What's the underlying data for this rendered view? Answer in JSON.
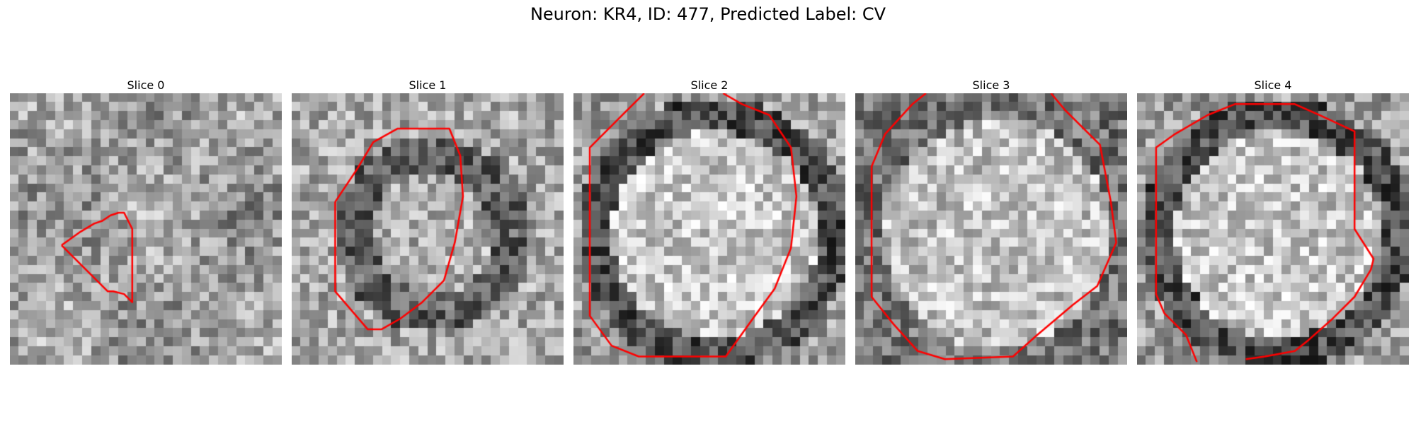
{
  "figure": {
    "title": "Neuron: KR4, ID: 477, Predicted Label: CV"
  },
  "contour_color": "#ff0000",
  "slices": [
    {
      "label": "Slice 0",
      "seed": 11,
      "style": "blob",
      "contour": [
        [
          0.19,
          0.56
        ],
        [
          0.26,
          0.51
        ],
        [
          0.31,
          0.48
        ],
        [
          0.34,
          0.47
        ],
        [
          0.37,
          0.45
        ],
        [
          0.4,
          0.44
        ],
        [
          0.42,
          0.44
        ],
        [
          0.45,
          0.5
        ],
        [
          0.45,
          0.77
        ],
        [
          0.44,
          0.76
        ],
        [
          0.42,
          0.74
        ],
        [
          0.38,
          0.73
        ],
        [
          0.36,
          0.73
        ],
        [
          0.3,
          0.67
        ],
        [
          0.19,
          0.56
        ]
      ]
    },
    {
      "label": "Slice 1",
      "seed": 23,
      "style": "ring",
      "contour": [
        [
          0.16,
          0.4
        ],
        [
          0.24,
          0.28
        ],
        [
          0.3,
          0.18
        ],
        [
          0.39,
          0.13
        ],
        [
          0.44,
          0.13
        ],
        [
          0.58,
          0.13
        ],
        [
          0.62,
          0.23
        ],
        [
          0.63,
          0.38
        ],
        [
          0.6,
          0.55
        ],
        [
          0.56,
          0.69
        ],
        [
          0.48,
          0.77
        ],
        [
          0.4,
          0.83
        ],
        [
          0.33,
          0.87
        ],
        [
          0.28,
          0.87
        ],
        [
          0.16,
          0.73
        ],
        [
          0.16,
          0.4
        ]
      ]
    },
    {
      "label": "Slice 2",
      "seed": 37,
      "style": "bright-ring",
      "contour": [
        [
          0.26,
          0.0
        ],
        [
          0.18,
          0.08
        ],
        [
          0.06,
          0.2
        ],
        [
          0.06,
          0.82
        ],
        [
          0.14,
          0.93
        ],
        [
          0.24,
          0.97
        ],
        [
          0.56,
          0.97
        ],
        [
          0.66,
          0.83
        ],
        [
          0.74,
          0.72
        ],
        [
          0.8,
          0.57
        ],
        [
          0.82,
          0.38
        ],
        [
          0.8,
          0.2
        ],
        [
          0.72,
          0.08
        ],
        [
          0.62,
          0.04
        ],
        [
          0.55,
          0.0
        ]
      ]
    },
    {
      "label": "Slice 3",
      "seed": 51,
      "style": "bright",
      "contour": [
        [
          0.26,
          0.0
        ],
        [
          0.21,
          0.04
        ],
        [
          0.11,
          0.15
        ],
        [
          0.06,
          0.27
        ],
        [
          0.06,
          0.75
        ],
        [
          0.14,
          0.85
        ],
        [
          0.23,
          0.95
        ],
        [
          0.33,
          0.98
        ],
        [
          0.58,
          0.97
        ],
        [
          0.67,
          0.89
        ],
        [
          0.8,
          0.78
        ],
        [
          0.89,
          0.71
        ],
        [
          0.96,
          0.55
        ],
        [
          0.94,
          0.4
        ],
        [
          0.9,
          0.19
        ],
        [
          0.77,
          0.06
        ],
        [
          0.72,
          0.0
        ]
      ]
    },
    {
      "label": "Slice 4",
      "seed": 67,
      "style": "bright-ring",
      "contour": [
        [
          0.22,
          0.99
        ],
        [
          0.18,
          0.89
        ],
        [
          0.1,
          0.81
        ],
        [
          0.07,
          0.74
        ],
        [
          0.07,
          0.2
        ],
        [
          0.14,
          0.15
        ],
        [
          0.26,
          0.08
        ],
        [
          0.36,
          0.04
        ],
        [
          0.58,
          0.04
        ],
        [
          0.67,
          0.08
        ],
        [
          0.8,
          0.14
        ],
        [
          0.8,
          0.5
        ],
        [
          0.87,
          0.61
        ],
        [
          0.86,
          0.65
        ],
        [
          0.8,
          0.75
        ],
        [
          0.72,
          0.83
        ],
        [
          0.63,
          0.91
        ],
        [
          0.58,
          0.95
        ],
        [
          0.47,
          0.97
        ],
        [
          0.4,
          0.98
        ]
      ]
    }
  ]
}
